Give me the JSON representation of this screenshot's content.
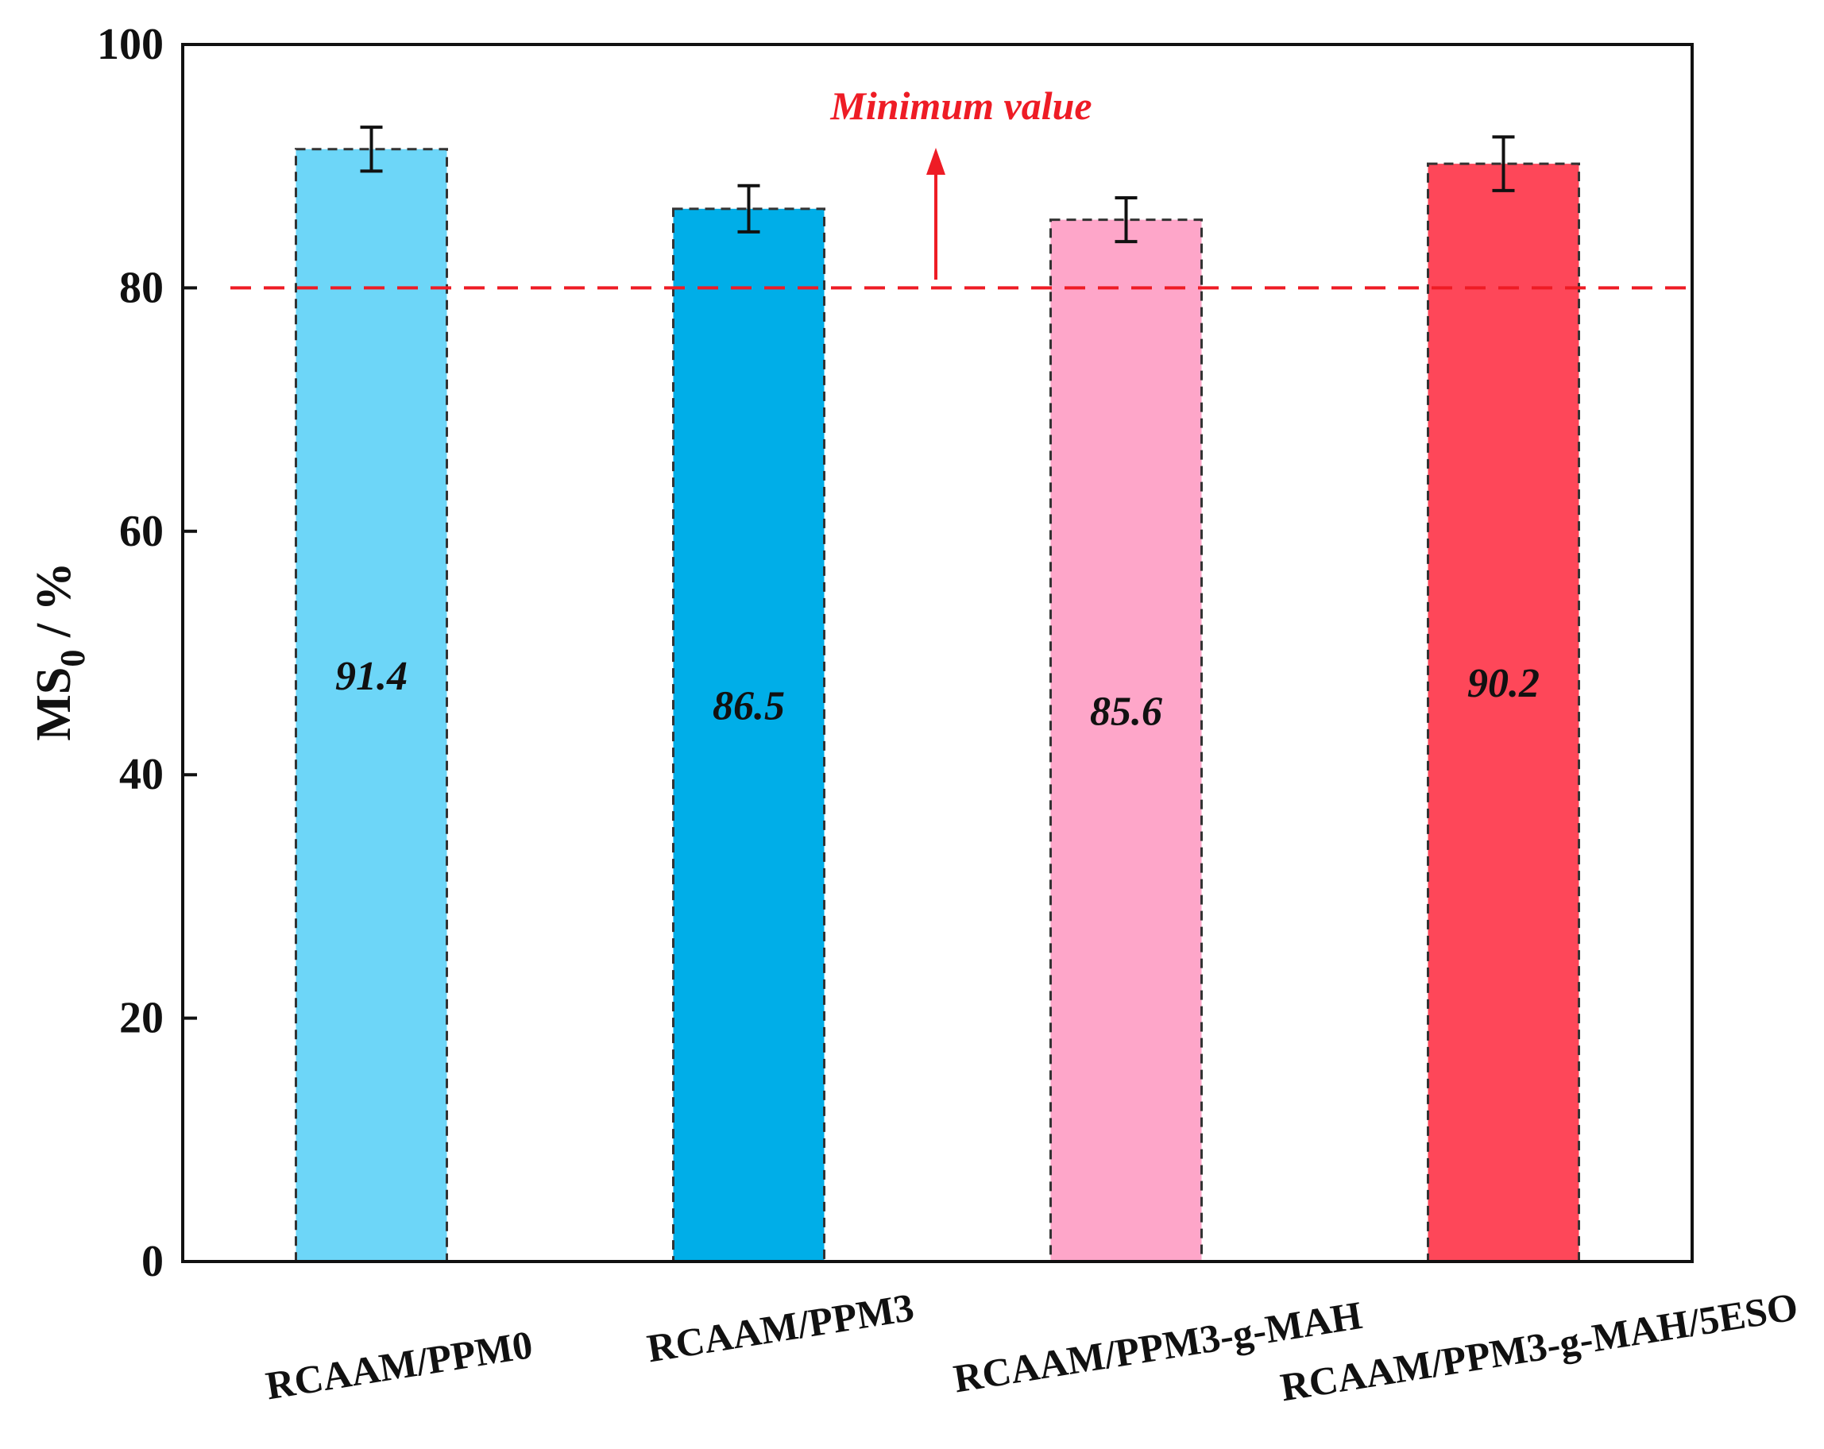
{
  "chart_data": {
    "type": "bar",
    "categories": [
      "RCAAM/PPM0",
      "RCAAM/PPM3",
      "RCAAM/PPM3-g-MAH",
      "RCAAM/PPM3-g-MAH/5ESO"
    ],
    "values": [
      91.4,
      86.5,
      85.6,
      90.2
    ],
    "errors": [
      1.8,
      1.9,
      1.8,
      2.2
    ],
    "value_labels": [
      "91.4",
      "86.5",
      "85.6",
      "90.2"
    ],
    "bar_colors": [
      "#6dd6f8",
      "#00aee8",
      "#fea6c9",
      "#fe4759"
    ],
    "title": "",
    "xlabel": "",
    "ylabel": {
      "main": "MS",
      "subscript": "0",
      "suffix": " / %"
    },
    "ylim": [
      0,
      100
    ],
    "yticks": [
      "0",
      "20",
      "40",
      "60",
      "80",
      "100"
    ],
    "threshold": {
      "value": 80,
      "color": "#ee1c25",
      "label": "Minimum value"
    },
    "grid": false,
    "legend": "none"
  }
}
